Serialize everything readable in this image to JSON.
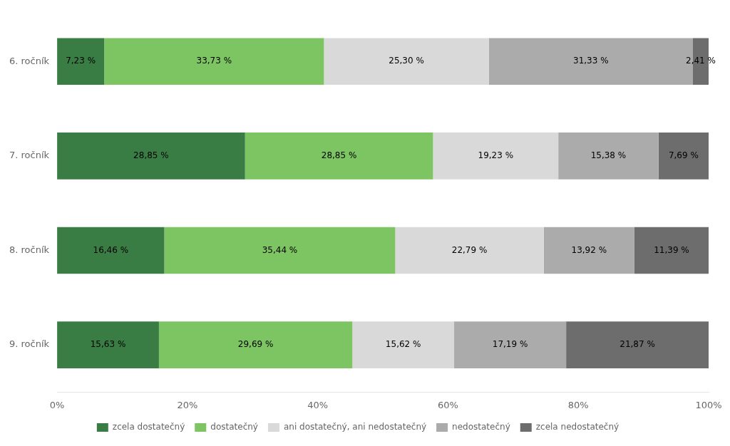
{
  "chart_data": {
    "type": "bar",
    "orientation": "horizontal",
    "stacked": true,
    "categories": [
      "6. ročník",
      "7. ročník",
      "8. ročník",
      "9. ročník"
    ],
    "series": [
      {
        "name": "zcela dostatečný",
        "color": "#3a7d44",
        "values": [
          7.23,
          28.85,
          16.46,
          15.63
        ],
        "value_labels": [
          "7,23 %",
          "28,85 %",
          "16,46 %",
          "15,63 %"
        ]
      },
      {
        "name": "dostatečný",
        "color": "#7dc462",
        "values": [
          33.73,
          28.85,
          35.44,
          29.69
        ],
        "value_labels": [
          "33,73 %",
          "28,85 %",
          "35,44 %",
          "29,69 %"
        ]
      },
      {
        "name": "ani dostatečný, ani nedostatečný",
        "color": "#d9d9d9",
        "values": [
          25.3,
          19.23,
          22.79,
          15.62
        ],
        "value_labels": [
          "25,30 %",
          "19,23 %",
          "22,79 %",
          "15,62 %"
        ]
      },
      {
        "name": "nedostatečný",
        "color": "#ababab",
        "values": [
          31.33,
          15.38,
          13.92,
          17.19
        ],
        "value_labels": [
          "31,33 %",
          "15,38 %",
          "13,92 %",
          "17,19 %"
        ]
      },
      {
        "name": "zcela nedostatečný",
        "color": "#6d6d6d",
        "values": [
          2.41,
          7.69,
          11.39,
          21.87
        ],
        "value_labels": [
          "2,41 %",
          "7,69 %",
          "11,39 %",
          "21,87 %"
        ]
      }
    ],
    "xlim": [
      0,
      100
    ],
    "xticks": [
      {
        "value": 0,
        "label": "0%"
      },
      {
        "value": 20,
        "label": "20%"
      },
      {
        "value": 40,
        "label": "40%"
      },
      {
        "value": 60,
        "label": "60%"
      },
      {
        "value": 80,
        "label": "80%"
      },
      {
        "value": 100,
        "label": "100%"
      }
    ],
    "data_labels": true,
    "grid": false,
    "legend": "bottom"
  }
}
